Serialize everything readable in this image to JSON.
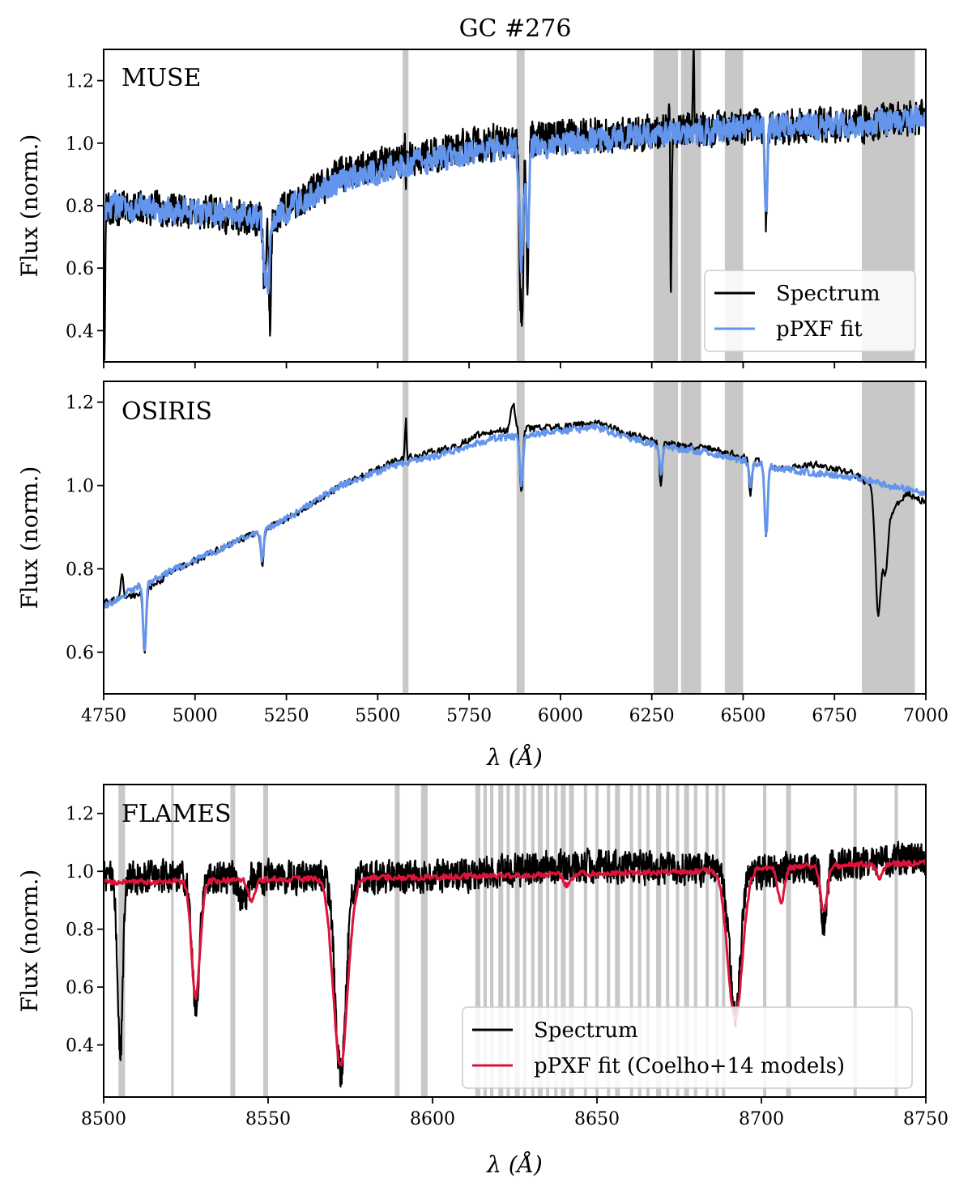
{
  "title": "GC #276",
  "colors": {
    "spectrum": "#000000",
    "fit_blue": "#6495ED",
    "fit_red": "#DC143C",
    "mask": "#c8c8c8"
  },
  "chart_data": [
    {
      "type": "line",
      "panel": "MUSE",
      "label": "MUSE",
      "xlim": [
        4750,
        7000
      ],
      "ylim": [
        0.3,
        1.3
      ],
      "xticks": [
        4750,
        5000,
        5250,
        5500,
        5750,
        6000,
        6250,
        6500,
        6750,
        7000
      ],
      "yticks": [
        0.4,
        0.6,
        0.8,
        1.0,
        1.2
      ],
      "ytick_labels": [
        "0.4",
        "0.6",
        "0.8",
        "1.0",
        "1.2"
      ],
      "xlabel": "",
      "ylabel": "Flux (norm.)",
      "legend": {
        "position": "lower-right",
        "entries": [
          {
            "name": "Spectrum",
            "color": "#000000"
          },
          {
            "name": "pPXF fit",
            "color": "#6495ED"
          }
        ]
      },
      "masked_regions": [
        [
          5568,
          5584
        ],
        [
          5880,
          5902
        ],
        [
          6255,
          6322
        ],
        [
          6330,
          6385
        ],
        [
          6450,
          6500
        ],
        [
          6825,
          6970
        ]
      ],
      "spectrum_trend": [
        [
          4750,
          0.8
        ],
        [
          5000,
          0.78
        ],
        [
          5200,
          0.76
        ],
        [
          5400,
          0.9
        ],
        [
          5600,
          0.95
        ],
        [
          5800,
          1.0
        ],
        [
          6000,
          1.02
        ],
        [
          6200,
          1.03
        ],
        [
          6500,
          1.05
        ],
        [
          6800,
          1.06
        ],
        [
          7000,
          1.08
        ]
      ],
      "spectrum_noise": 0.07,
      "spectrum_features": [
        [
          4752,
          0.3,
          2
        ],
        [
          5190,
          0.55,
          4
        ],
        [
          5205,
          0.42,
          3
        ],
        [
          5577,
          1.28,
          2
        ],
        [
          5577,
          0.48,
          1.5
        ],
        [
          5890,
          0.6,
          3
        ],
        [
          5896,
          0.52,
          3
        ],
        [
          5910,
          0.55,
          3
        ],
        [
          6300,
          1.3,
          2
        ],
        [
          6302,
          0.34,
          2
        ],
        [
          6364,
          1.3,
          2
        ],
        [
          6563,
          0.75,
          3
        ]
      ],
      "fit_trend": [
        [
          4750,
          0.8
        ],
        [
          5000,
          0.78
        ],
        [
          5200,
          0.76
        ],
        [
          5400,
          0.88
        ],
        [
          5600,
          0.94
        ],
        [
          5800,
          0.98
        ],
        [
          6000,
          1.0
        ],
        [
          6200,
          1.02
        ],
        [
          6500,
          1.05
        ],
        [
          6800,
          1.06
        ],
        [
          7000,
          1.08
        ]
      ],
      "fit_noise": 0.05,
      "fit_features": [
        [
          5190,
          0.58,
          4
        ],
        [
          5200,
          0.55,
          4
        ],
        [
          5893,
          0.62,
          5
        ],
        [
          5910,
          0.66,
          4
        ],
        [
          6563,
          0.76,
          3
        ]
      ]
    },
    {
      "type": "line",
      "panel": "OSIRIS",
      "label": "OSIRIS",
      "xlim": [
        4750,
        7000
      ],
      "ylim": [
        0.5,
        1.25
      ],
      "xticks": [
        4750,
        5000,
        5250,
        5500,
        5750,
        6000,
        6250,
        6500,
        6750,
        7000
      ],
      "xtick_labels": [
        "4750",
        "5000",
        "5250",
        "5500",
        "5750",
        "6000",
        "6250",
        "6500",
        "6750",
        "7000"
      ],
      "yticks": [
        0.6,
        0.8,
        1.0,
        1.2
      ],
      "ytick_labels": [
        "0.6",
        "0.8",
        "1.0",
        "1.2"
      ],
      "xlabel": "λ (Å)",
      "ylabel": "Flux (norm.)",
      "masked_regions": [
        [
          5568,
          5584
        ],
        [
          5880,
          5902
        ],
        [
          6255,
          6322
        ],
        [
          6330,
          6385
        ],
        [
          6450,
          6500
        ],
        [
          6825,
          6970
        ]
      ],
      "spectrum_trend": [
        [
          4750,
          0.72
        ],
        [
          4850,
          0.74
        ],
        [
          4950,
          0.8
        ],
        [
          5100,
          0.86
        ],
        [
          5250,
          0.92
        ],
        [
          5400,
          1.0
        ],
        [
          5550,
          1.06
        ],
        [
          5700,
          1.09
        ],
        [
          5800,
          1.13
        ],
        [
          6000,
          1.14
        ],
        [
          6100,
          1.15
        ],
        [
          6200,
          1.12
        ],
        [
          6300,
          1.1
        ],
        [
          6400,
          1.09
        ],
        [
          6500,
          1.07
        ],
        [
          6600,
          1.04
        ],
        [
          6700,
          1.05
        ],
        [
          6800,
          1.03
        ],
        [
          6850,
          1.0
        ],
        [
          6900,
          0.93
        ],
        [
          6950,
          0.98
        ],
        [
          7000,
          0.96
        ]
      ],
      "spectrum_noise": 0.01,
      "spectrum_features": [
        [
          4800,
          0.78,
          4
        ],
        [
          4862,
          0.6,
          4
        ],
        [
          5184,
          0.8,
          4
        ],
        [
          5577,
          1.25,
          2
        ],
        [
          5577,
          0.98,
          2
        ],
        [
          5870,
          1.2,
          6
        ],
        [
          5893,
          0.98,
          4
        ],
        [
          6275,
          1.0,
          4
        ],
        [
          6520,
          0.98,
          4
        ],
        [
          6563,
          0.87,
          4
        ],
        [
          6870,
          0.69,
          8
        ],
        [
          6890,
          0.8,
          6
        ]
      ],
      "fit_trend": [
        [
          4750,
          0.71
        ],
        [
          4850,
          0.76
        ],
        [
          4950,
          0.8
        ],
        [
          5100,
          0.86
        ],
        [
          5250,
          0.92
        ],
        [
          5400,
          1.0
        ],
        [
          5550,
          1.05
        ],
        [
          5700,
          1.08
        ],
        [
          5800,
          1.11
        ],
        [
          6000,
          1.13
        ],
        [
          6100,
          1.14
        ],
        [
          6200,
          1.11
        ],
        [
          6300,
          1.09
        ],
        [
          6400,
          1.08
        ],
        [
          6500,
          1.06
        ],
        [
          6600,
          1.04
        ],
        [
          6700,
          1.03
        ],
        [
          6800,
          1.02
        ],
        [
          6900,
          1.0
        ],
        [
          7000,
          0.98
        ]
      ],
      "fit_noise": 0.01,
      "fit_features": [
        [
          4862,
          0.6,
          4
        ],
        [
          5184,
          0.82,
          4
        ],
        [
          5893,
          1.0,
          4
        ],
        [
          6275,
          1.03,
          4
        ],
        [
          6520,
          1.0,
          4
        ],
        [
          6563,
          0.88,
          4
        ]
      ]
    },
    {
      "type": "line",
      "panel": "FLAMES",
      "label": "FLAMES",
      "xlim": [
        8500,
        8750
      ],
      "ylim": [
        0.22,
        1.3
      ],
      "xticks": [
        8500,
        8550,
        8600,
        8650,
        8700,
        8750
      ],
      "xtick_labels": [
        "8500",
        "8550",
        "8600",
        "8650",
        "8700",
        "8750"
      ],
      "yticks": [
        0.4,
        0.6,
        0.8,
        1.0,
        1.2
      ],
      "ytick_labels": [
        "0.4",
        "0.6",
        "0.8",
        "1.0",
        "1.2"
      ],
      "xlabel": "λ (Å)",
      "ylabel": "Flux (norm.)",
      "legend": {
        "position": "lower-right",
        "entries": [
          {
            "name": "Spectrum",
            "color": "#000000"
          },
          {
            "name": "pPXF fit (Coelho+14 models)",
            "color": "#DC143C"
          }
        ]
      },
      "masked_regions": [
        [
          8504.5,
          8506.5
        ],
        [
          8520.5,
          8521.3
        ],
        [
          8538.5,
          8540
        ],
        [
          8548.5,
          8550
        ],
        [
          8588.5,
          8590
        ],
        [
          8596.5,
          8598.5
        ],
        [
          8613,
          8614.5
        ],
        [
          8615.5,
          8616.5
        ],
        [
          8617.5,
          8618.5
        ],
        [
          8620,
          8621.5
        ],
        [
          8622.5,
          8623.5
        ],
        [
          8625,
          8626.5
        ],
        [
          8627.5,
          8628.5
        ],
        [
          8630,
          8631
        ],
        [
          8632,
          8633.5
        ],
        [
          8634.5,
          8635.5
        ],
        [
          8637,
          8638
        ],
        [
          8639,
          8640.5
        ],
        [
          8641.5,
          8643
        ],
        [
          8646,
          8647
        ],
        [
          8649.5,
          8650.5
        ],
        [
          8653,
          8654
        ],
        [
          8655.5,
          8657
        ],
        [
          8660,
          8661
        ],
        [
          8662.5,
          8663.5
        ],
        [
          8665,
          8666
        ],
        [
          8668,
          8669.5
        ],
        [
          8671,
          8672
        ],
        [
          8674,
          8675
        ],
        [
          8676.5,
          8678
        ],
        [
          8679.5,
          8680.5
        ],
        [
          8683,
          8684
        ],
        [
          8686,
          8687
        ],
        [
          8688,
          8689
        ],
        [
          8700.5,
          8701.5
        ],
        [
          8707.5,
          8709
        ],
        [
          8728,
          8729
        ],
        [
          8740.5,
          8741.5
        ]
      ],
      "spectrum_trend": [
        [
          8500,
          0.98
        ],
        [
          8600,
          0.98
        ],
        [
          8640,
          1.02
        ],
        [
          8700,
          1.0
        ],
        [
          8750,
          1.05
        ]
      ],
      "spectrum_noise": 0.07,
      "spectrum_features": [
        [
          8505,
          0.36,
          0.8
        ],
        [
          8528,
          0.55,
          1.2
        ],
        [
          8542.5,
          0.88,
          1
        ],
        [
          8572,
          0.3,
          1.6
        ],
        [
          8692,
          0.5,
          1.6
        ],
        [
          8719,
          0.82,
          0.8
        ]
      ],
      "fit_trend": [
        [
          8500,
          0.96
        ],
        [
          8540,
          0.97
        ],
        [
          8600,
          0.98
        ],
        [
          8640,
          0.99
        ],
        [
          8680,
          1.0
        ],
        [
          8720,
          1.02
        ],
        [
          8750,
          1.03
        ]
      ],
      "fit_noise": 0.012,
      "fit_features": [
        [
          8528,
          0.56,
          1.3
        ],
        [
          8545,
          0.9,
          1
        ],
        [
          8572,
          0.33,
          2.2
        ],
        [
          8641,
          0.95,
          1
        ],
        [
          8692,
          0.49,
          2.2
        ],
        [
          8706,
          0.89,
          1
        ],
        [
          8719,
          0.86,
          1
        ],
        [
          8736,
          0.98,
          1
        ]
      ]
    }
  ]
}
